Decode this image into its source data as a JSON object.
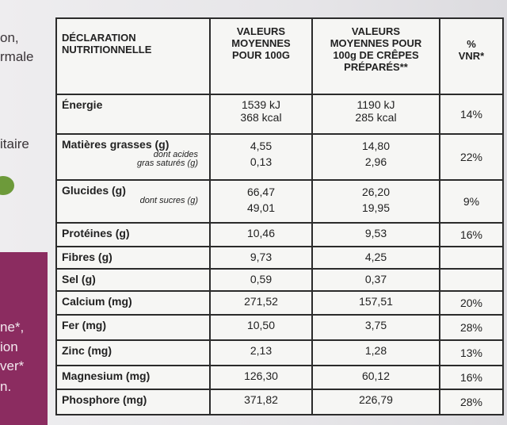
{
  "side_text": [
    "on,",
    "rmale",
    "itaire",
    "ne*,",
    "ion",
    "ver*",
    "n."
  ],
  "table": {
    "header": {
      "label": [
        "DÉCLARATION",
        "NUTRITIONNELLE"
      ],
      "v1": [
        "VALEURS",
        "MOYENNES",
        "POUR 100G"
      ],
      "v2": [
        "VALEURS",
        "MOYENNES POUR",
        "100g DE CRÊPES",
        "PRÉPARÉS**"
      ],
      "vnr": [
        "%",
        "VNR*"
      ]
    },
    "rows": [
      {
        "label": [
          "Énergie"
        ],
        "v1": [
          "1539 kJ",
          "368 kcal"
        ],
        "v2": [
          "1190 kJ",
          "285 kcal"
        ],
        "vnr": "14%"
      },
      {
        "label": [
          "Matières grasses (g)"
        ],
        "sublabel": [
          "dont acides",
          "gras saturés (g)"
        ],
        "v1": [
          "4,55",
          "0,13"
        ],
        "v2": [
          "14,80",
          "2,96"
        ],
        "vnr": "22%"
      },
      {
        "label": [
          "Glucides (g)"
        ],
        "sublabel": [
          "dont sucres (g)"
        ],
        "v1": [
          "66,47",
          "49,01"
        ],
        "v2": [
          "26,20",
          "19,95"
        ],
        "vnr": "9%"
      },
      {
        "label": [
          "Protéines (g)"
        ],
        "v1": [
          "10,46"
        ],
        "v2": [
          "9,53"
        ],
        "vnr": "16%"
      },
      {
        "label": [
          "Fibres (g)"
        ],
        "v1": [
          "9,73"
        ],
        "v2": [
          "4,25"
        ]
      },
      {
        "label": [
          "Sel (g)"
        ],
        "v1": [
          "0,59"
        ],
        "v2": [
          "0,37"
        ]
      },
      {
        "label": [
          "Calcium (mg)"
        ],
        "v1": [
          "271,52"
        ],
        "v2": [
          "157,51"
        ],
        "vnr": "20%"
      },
      {
        "label": [
          "Fer (mg)"
        ],
        "v1": [
          "10,50"
        ],
        "v2": [
          "3,75"
        ],
        "vnr": "28%"
      },
      {
        "label": [
          "Zinc (mg)"
        ],
        "v1": [
          "2,13"
        ],
        "v2": [
          "1,28"
        ],
        "vnr": "13%"
      },
      {
        "label": [
          "Magnesium (mg)"
        ],
        "v1": [
          "126,30"
        ],
        "v2": [
          "60,12"
        ],
        "vnr": "16%"
      },
      {
        "label": [
          "Phosphore (mg)"
        ],
        "v1": [
          "371,82"
        ],
        "v2": [
          "226,79"
        ],
        "vnr": "28%"
      }
    ]
  }
}
